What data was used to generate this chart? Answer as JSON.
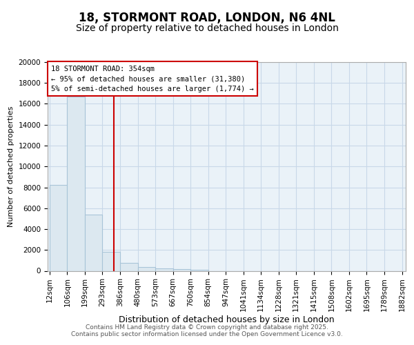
{
  "title_line1": "18, STORMONT ROAD, LONDON, N6 4NL",
  "title_line2": "Size of property relative to detached houses in London",
  "xlabel": "Distribution of detached houses by size in London",
  "ylabel": "Number of detached properties",
  "bar_color": "#dce8f0",
  "bar_edge_color": "#a8c4d8",
  "vline_color": "#cc0000",
  "vline_x": 354,
  "annotation_line1": "18 STORMONT ROAD: 354sqm",
  "annotation_line2": "← 95% of detached houses are smaller (31,380)",
  "annotation_line3": "5% of semi-detached houses are larger (1,774) →",
  "annotation_box_color": "#ffffff",
  "annotation_box_edge": "#cc0000",
  "grid_color": "#c8d8e8",
  "background_color": "#eaf2f8",
  "bin_edges": [
    12,
    106,
    199,
    293,
    386,
    480,
    573,
    667,
    760,
    854,
    947,
    1041,
    1134,
    1228,
    1321,
    1415,
    1508,
    1602,
    1695,
    1789,
    1882
  ],
  "bar_heights": [
    8200,
    16700,
    5400,
    1850,
    750,
    350,
    230,
    180,
    130,
    0,
    0,
    0,
    0,
    0,
    0,
    0,
    0,
    0,
    0,
    0
  ],
  "ylim": [
    0,
    20000
  ],
  "yticks": [
    0,
    2000,
    4000,
    6000,
    8000,
    10000,
    12000,
    14000,
    16000,
    18000,
    20000
  ],
  "footer_text": "Contains HM Land Registry data © Crown copyright and database right 2025.\nContains public sector information licensed under the Open Government Licence v3.0.",
  "title_fontsize": 12,
  "subtitle_fontsize": 10,
  "tick_fontsize": 7.5,
  "ylabel_fontsize": 8,
  "xlabel_fontsize": 9
}
